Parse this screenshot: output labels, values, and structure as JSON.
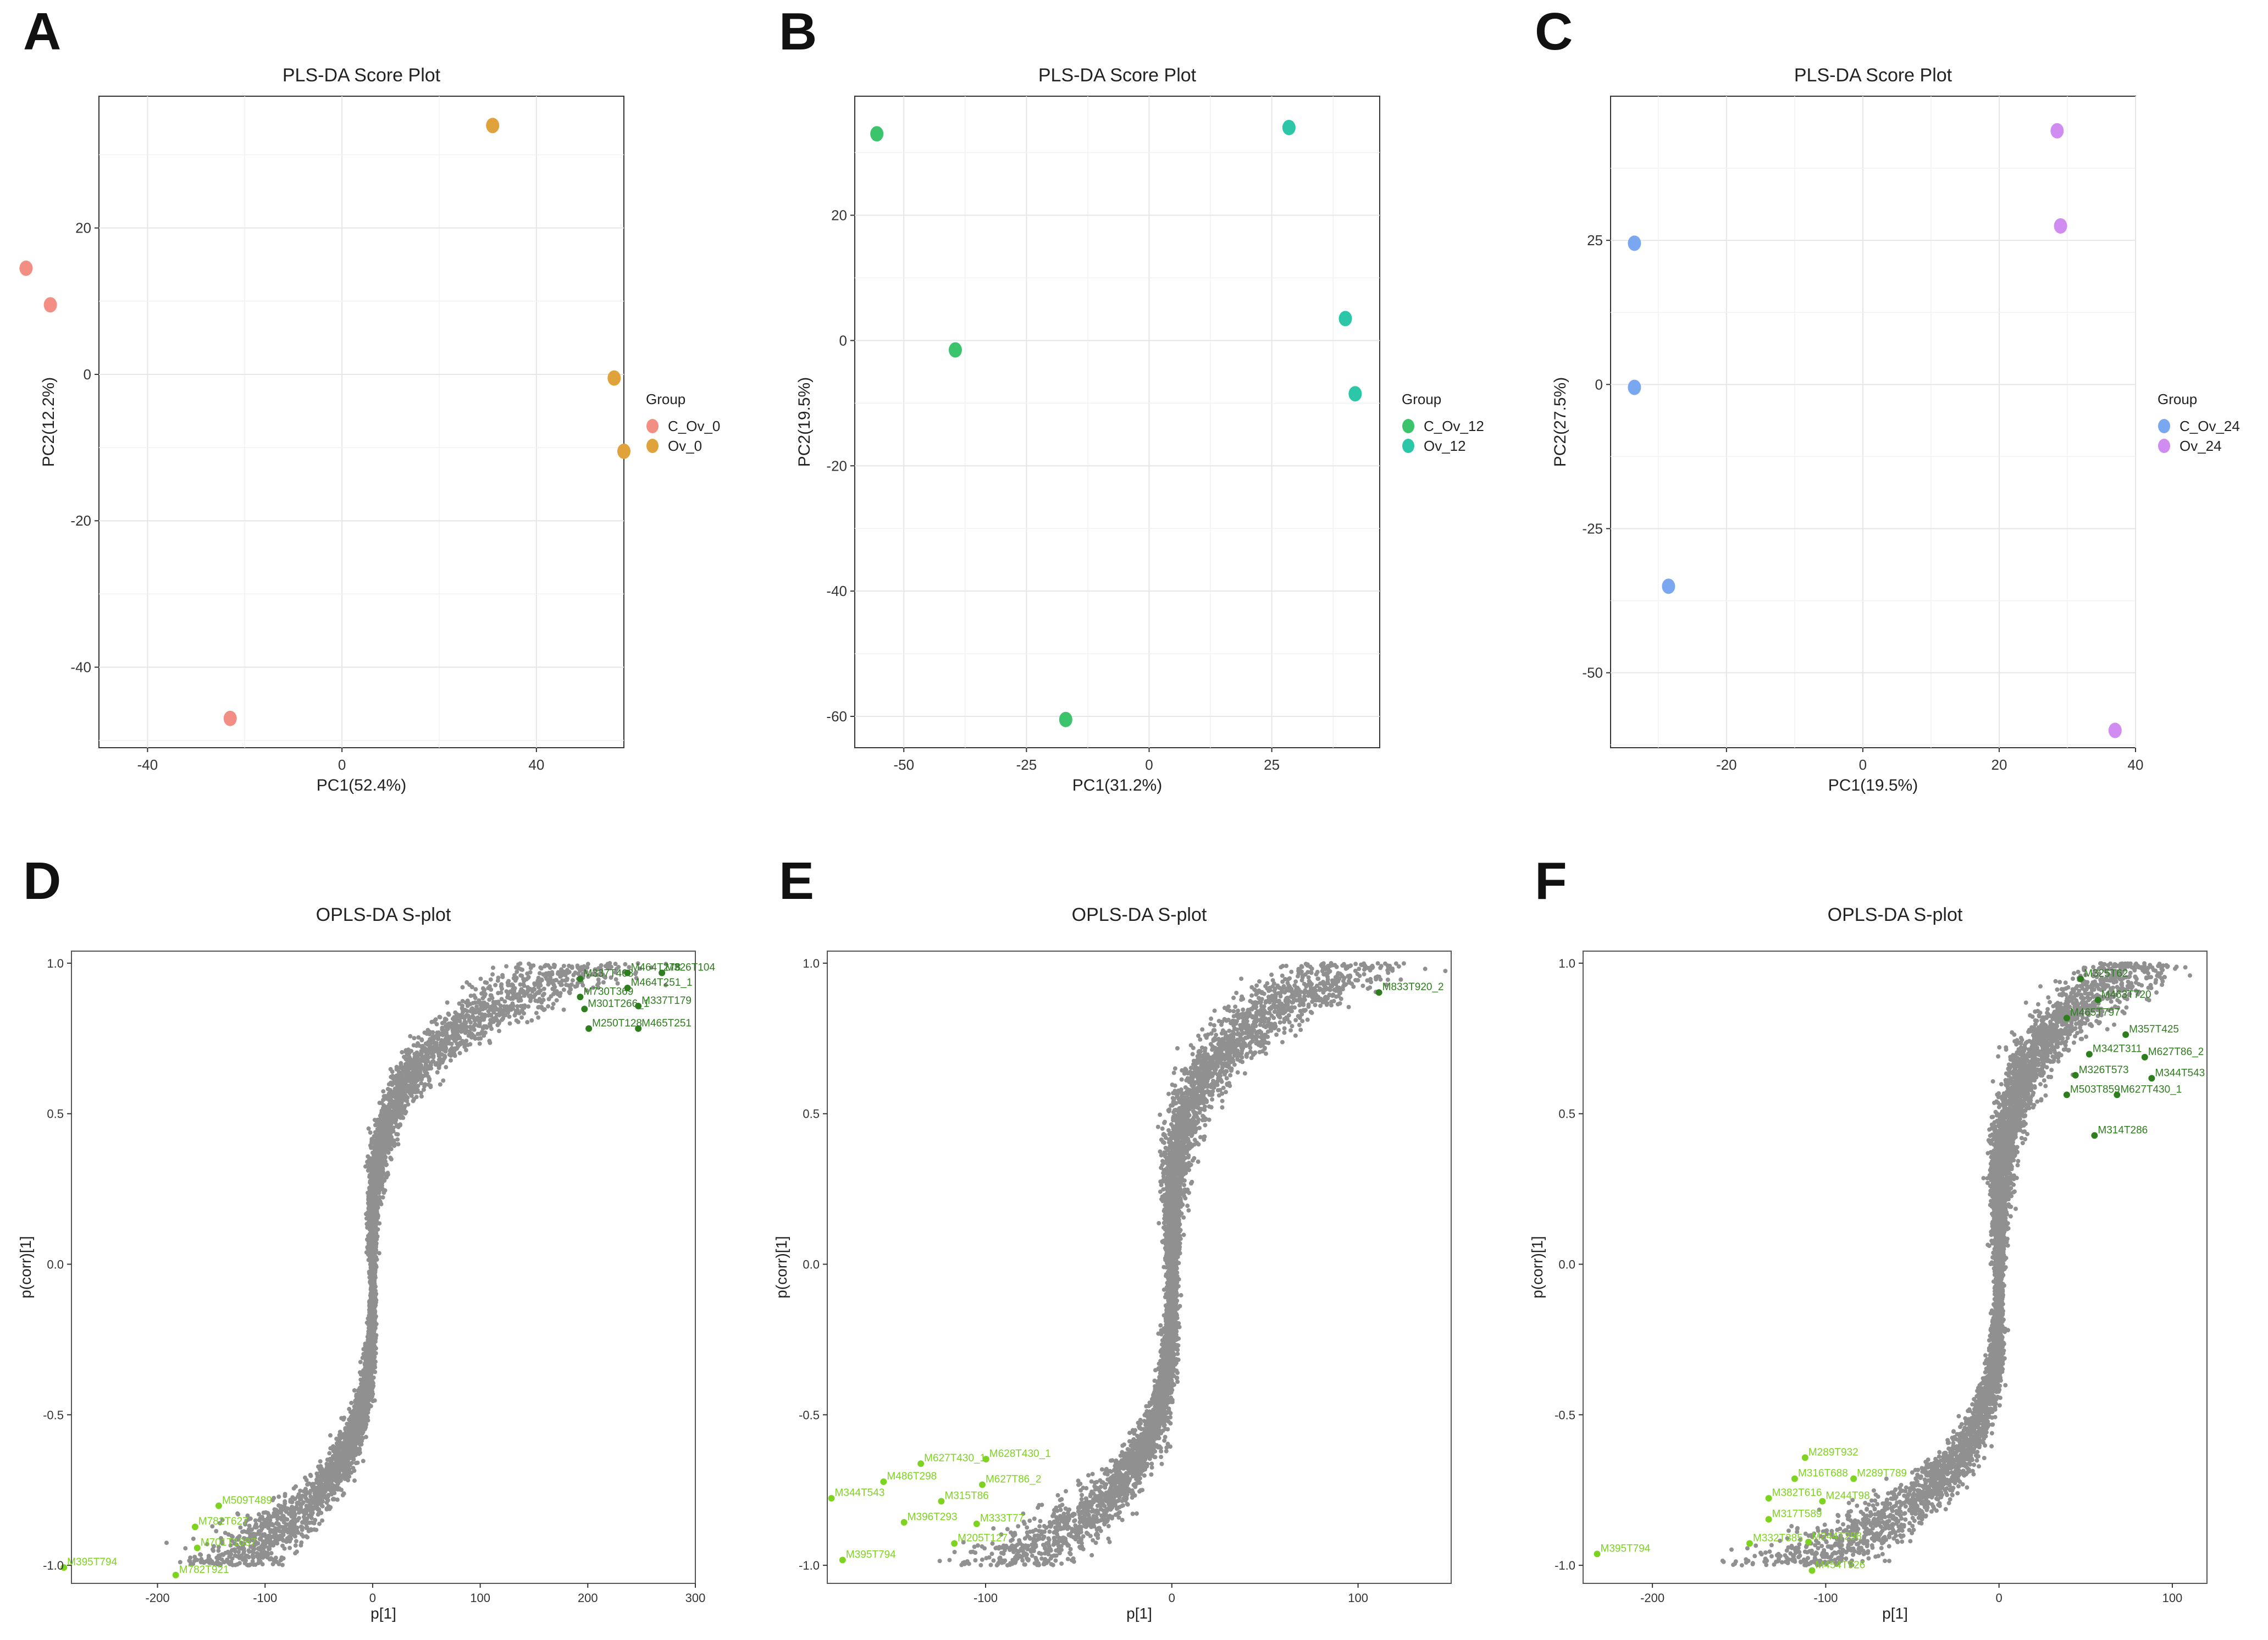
{
  "chart_data": [
    {
      "panel": "A",
      "type": "scatter",
      "title": "PLS-DA Score Plot",
      "xlabel": "PC1(52.4%)",
      "ylabel": "PC2(12.2%)",
      "xlim": [
        -50,
        58
      ],
      "ylim": [
        -51,
        38
      ],
      "xticks": [
        -40,
        0,
        40
      ],
      "yticks": [
        -40,
        -20,
        0,
        20
      ],
      "legend_title": "Group",
      "legend_position": "right",
      "series": [
        {
          "name": "C_Ov_0",
          "color": "#F28E84",
          "points": [
            [
              -65,
              14.5
            ],
            [
              -60,
              9.5
            ],
            [
              -23,
              -47
            ]
          ]
        },
        {
          "name": "Ov_0",
          "color": "#E0A23A",
          "points": [
            [
              31,
              34
            ],
            [
              56,
              -0.5
            ],
            [
              58,
              -10.5
            ]
          ]
        }
      ]
    },
    {
      "panel": "B",
      "type": "scatter",
      "title": "PLS-DA Score Plot",
      "xlabel": "PC1(31.2%)",
      "ylabel": "PC2(19.5%)",
      "xlim": [
        -60,
        47
      ],
      "ylim": [
        -65,
        39
      ],
      "xticks": [
        -50,
        -25,
        0,
        25
      ],
      "yticks": [
        -60,
        -40,
        -20,
        0,
        20
      ],
      "legend_title": "Group",
      "legend_position": "right",
      "series": [
        {
          "name": "C_Ov_12",
          "color": "#3CC46C",
          "points": [
            [
              -55.5,
              33
            ],
            [
              -39.5,
              -1.5
            ],
            [
              -17,
              -60.5
            ]
          ]
        },
        {
          "name": "Ov_12",
          "color": "#2BC7A8",
          "points": [
            [
              28.5,
              34
            ],
            [
              40,
              3.5
            ],
            [
              42,
              -8.5
            ]
          ]
        }
      ]
    },
    {
      "panel": "C",
      "type": "scatter",
      "title": "PLS-DA Score Plot",
      "xlabel": "PC1(19.5%)",
      "ylabel": "PC2(27.5%)",
      "xlim": [
        -37,
        40
      ],
      "ylim": [
        -63,
        50
      ],
      "xticks": [
        -20,
        0,
        20,
        40
      ],
      "yticks": [
        -50,
        -25,
        0,
        25
      ],
      "legend_title": "Group",
      "legend_position": "right",
      "series": [
        {
          "name": "C_Ov_24",
          "color": "#7AA8F0",
          "points": [
            [
              -33.5,
              24.5
            ],
            [
              -33.5,
              -0.5
            ],
            [
              -28.5,
              -35
            ]
          ]
        },
        {
          "name": "Ov_24",
          "color": "#D08CF0",
          "points": [
            [
              28.5,
              44
            ],
            [
              29,
              27.5
            ],
            [
              37,
              -60
            ]
          ]
        }
      ]
    },
    {
      "panel": "D",
      "type": "scatter",
      "title": "OPLS-DA S-plot",
      "xlabel": "p[1]",
      "ylabel": "p(corr)[1]",
      "xlim": [
        -280,
        300
      ],
      "ylim": [
        -1.06,
        1.04
      ],
      "xticks": [
        -200,
        -100,
        0,
        100,
        200,
        300
      ],
      "xtick_labels": [
        "-200",
        "-100",
        "0",
        "100",
        "200",
        "300"
      ],
      "yticks": [
        -1.0,
        -0.5,
        0.0,
        0.5,
        1.0
      ],
      "ytick_labels": [
        "-1.0",
        "-0.5",
        "0.0",
        "0.5",
        "1.0"
      ],
      "labels": [
        {
          "text": "M464T278",
          "x": 240,
          "y": 0.975,
          "color": "#2E7D1E"
        },
        {
          "text": "M326T104",
          "x": 272,
          "y": 0.975,
          "color": "#2E7D1E"
        },
        {
          "text": "M337T468",
          "x": 196,
          "y": 0.955,
          "color": "#2E7D1E"
        },
        {
          "text": "M464T251_1",
          "x": 240,
          "y": 0.925,
          "color": "#2E7D1E"
        },
        {
          "text": "M730T369",
          "x": 196,
          "y": 0.895,
          "color": "#2E7D1E"
        },
        {
          "text": "M337T179",
          "x": 250,
          "y": 0.865,
          "color": "#2E7D1E"
        },
        {
          "text": "M301T266_1",
          "x": 200,
          "y": 0.855,
          "color": "#2E7D1E"
        },
        {
          "text": "M250T128",
          "x": 204,
          "y": 0.79,
          "color": "#2E7D1E"
        },
        {
          "text": "M465T251",
          "x": 250,
          "y": 0.79,
          "color": "#2E7D1E"
        },
        {
          "text": "M509T489",
          "x": -140,
          "y": -0.795,
          "color": "#7ED321"
        },
        {
          "text": "M782T627",
          "x": -162,
          "y": -0.865,
          "color": "#7ED321"
        },
        {
          "text": "M701T1087",
          "x": -160,
          "y": -0.935,
          "color": "#7ED321"
        },
        {
          "text": "M395T794",
          "x": -284,
          "y": -1.0,
          "color": "#7ED321"
        },
        {
          "text": "M782T921",
          "x": -180,
          "y": -1.025,
          "color": "#7ED321"
        }
      ]
    },
    {
      "panel": "E",
      "type": "scatter",
      "title": "OPLS-DA S-plot",
      "xlabel": "p[1]",
      "ylabel": "p(corr)[1]",
      "xlim": [
        -185,
        150
      ],
      "ylim": [
        -1.06,
        1.04
      ],
      "xticks": [
        -100,
        0,
        100
      ],
      "xtick_labels": [
        "-100",
        "0",
        "100"
      ],
      "yticks": [
        -1.0,
        -0.5,
        0.0,
        0.5,
        1.0
      ],
      "ytick_labels": [
        "-1.0",
        "-0.5",
        "0.0",
        "0.5",
        "1.0"
      ],
      "labels": [
        {
          "text": "M833T920_2",
          "x": 113,
          "y": 0.91,
          "color": "#2E7D1E"
        },
        {
          "text": "M627T430_1",
          "x": -133,
          "y": -0.655,
          "color": "#7ED321"
        },
        {
          "text": "M628T430_1",
          "x": -98,
          "y": -0.64,
          "color": "#7ED321"
        },
        {
          "text": "M486T298",
          "x": -153,
          "y": -0.715,
          "color": "#7ED321"
        },
        {
          "text": "M627T86_2",
          "x": -100,
          "y": -0.725,
          "color": "#7ED321"
        },
        {
          "text": "M344T543",
          "x": -181,
          "y": -0.77,
          "color": "#7ED321"
        },
        {
          "text": "M315T86",
          "x": -122,
          "y": -0.78,
          "color": "#7ED321"
        },
        {
          "text": "M396T293",
          "x": -142,
          "y": -0.85,
          "color": "#7ED321"
        },
        {
          "text": "M333T77",
          "x": -103,
          "y": -0.855,
          "color": "#7ED321"
        },
        {
          "text": "M205T127",
          "x": -115,
          "y": -0.92,
          "color": "#7ED321"
        },
        {
          "text": "M395T794",
          "x": -175,
          "y": -0.975,
          "color": "#7ED321"
        }
      ]
    },
    {
      "panel": "F",
      "type": "scatter",
      "title": "OPLS-DA S-plot",
      "xlabel": "p[1]",
      "ylabel": "p(corr)[1]",
      "xlim": [
        -240,
        120
      ],
      "ylim": [
        -1.06,
        1.04
      ],
      "xticks": [
        -200,
        -100,
        0,
        100
      ],
      "xtick_labels": [
        "-200",
        "-100",
        "0",
        "100"
      ],
      "yticks": [
        -1.0,
        -0.5,
        0.0,
        0.5,
        1.0
      ],
      "ytick_labels": [
        "-1.0",
        "-0.5",
        "0.0",
        "0.5",
        "1.0"
      ],
      "labels": [
        {
          "text": "M325T62",
          "x": 49,
          "y": 0.955,
          "color": "#2E7D1E"
        },
        {
          "text": "M463T720",
          "x": 59,
          "y": 0.885,
          "color": "#2E7D1E"
        },
        {
          "text": "M465T797",
          "x": 41,
          "y": 0.825,
          "color": "#2E7D1E"
        },
        {
          "text": "M357T425",
          "x": 75,
          "y": 0.77,
          "color": "#2E7D1E"
        },
        {
          "text": "M342T311",
          "x": 54,
          "y": 0.705,
          "color": "#2E7D1E"
        },
        {
          "text": "M627T86_2",
          "x": 86,
          "y": 0.695,
          "color": "#2E7D1E"
        },
        {
          "text": "M326T573",
          "x": 46,
          "y": 0.635,
          "color": "#2E7D1E"
        },
        {
          "text": "M344T543",
          "x": 90,
          "y": 0.625,
          "color": "#2E7D1E"
        },
        {
          "text": "M503T859",
          "x": 41,
          "y": 0.57,
          "color": "#2E7D1E"
        },
        {
          "text": "M627T430_1",
          "x": 70,
          "y": 0.57,
          "color": "#2E7D1E"
        },
        {
          "text": "M314T286",
          "x": 57,
          "y": 0.435,
          "color": "#2E7D1E"
        },
        {
          "text": "M289T932",
          "x": -110,
          "y": -0.635,
          "color": "#7ED321"
        },
        {
          "text": "M316T688",
          "x": -116,
          "y": -0.705,
          "color": "#7ED321"
        },
        {
          "text": "M289T789",
          "x": -82,
          "y": -0.705,
          "color": "#7ED321"
        },
        {
          "text": "M382T616",
          "x": -131,
          "y": -0.77,
          "color": "#7ED321"
        },
        {
          "text": "M244T98",
          "x": -100,
          "y": -0.78,
          "color": "#7ED321"
        },
        {
          "text": "M317T589",
          "x": -131,
          "y": -0.84,
          "color": "#7ED321"
        },
        {
          "text": "M332T385",
          "x": -142,
          "y": -0.92,
          "color": "#7ED321"
        },
        {
          "text": "M244T298",
          "x": -108,
          "y": -0.915,
          "color": "#7ED321"
        },
        {
          "text": "M395T794",
          "x": -230,
          "y": -0.955,
          "color": "#7ED321"
        },
        {
          "text": "M454T926",
          "x": -106,
          "y": -1.01,
          "color": "#7ED321"
        }
      ]
    }
  ]
}
